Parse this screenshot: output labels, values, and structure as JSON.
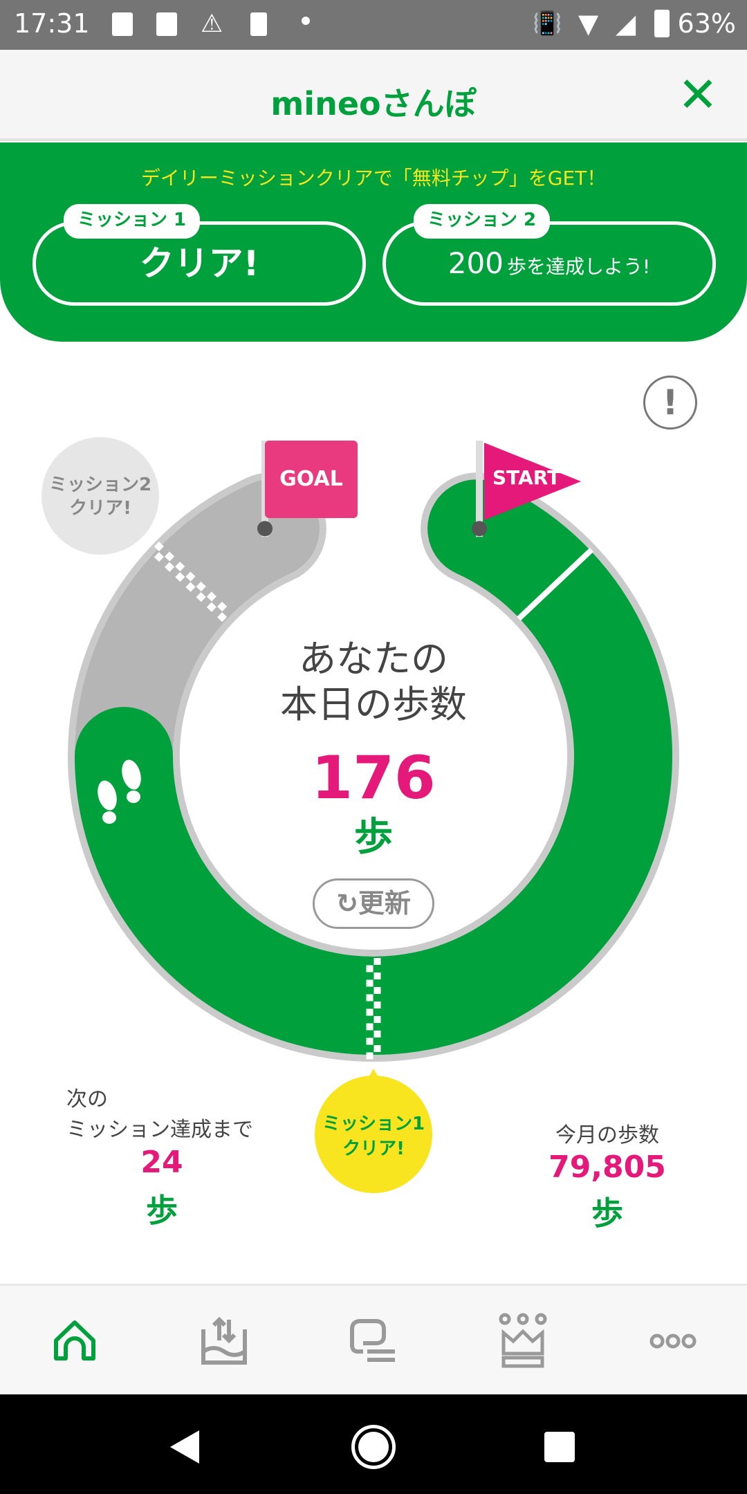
{
  "status_bar": {
    "time": "17:31",
    "battery": "63%"
  },
  "header": {
    "title": "mineoさんぽ",
    "close_icon": "close-icon"
  },
  "banner": {
    "promo": "デイリーミッションクリアで「無料チップ」をGET！",
    "missions": [
      {
        "tag": "ミッション 1",
        "status": "クリア!"
      },
      {
        "tag": "ミッション 2",
        "goal_steps": "200",
        "goal_text": "歩を達成しよう!"
      }
    ]
  },
  "course": {
    "goal_label": "GOAL",
    "start_label": "START",
    "mission2_bubble": [
      "ミッション2",
      "クリア!"
    ],
    "mission1_bubble": [
      "ミッション1",
      "クリア!"
    ],
    "today_label_1": "あなたの",
    "today_label_2": "本日の歩数",
    "today_steps": "176",
    "unit": "歩",
    "refresh_label": "更新"
  },
  "stats": {
    "next_label_1": "次の",
    "next_label_2": "ミッション達成まで",
    "next_steps": "24",
    "month_label": "今月の歩数",
    "month_steps": "79,805",
    "unit": "歩"
  },
  "colors": {
    "green": "#00a03c",
    "pink": "#e4197a",
    "yellow": "#f8e51f",
    "gray_track": "#b5b5b5"
  },
  "nav": {
    "items": [
      "home-icon",
      "data-transfer-icon",
      "chat-icon",
      "ranking-crown-icon",
      "more-icon"
    ],
    "active": 0
  }
}
